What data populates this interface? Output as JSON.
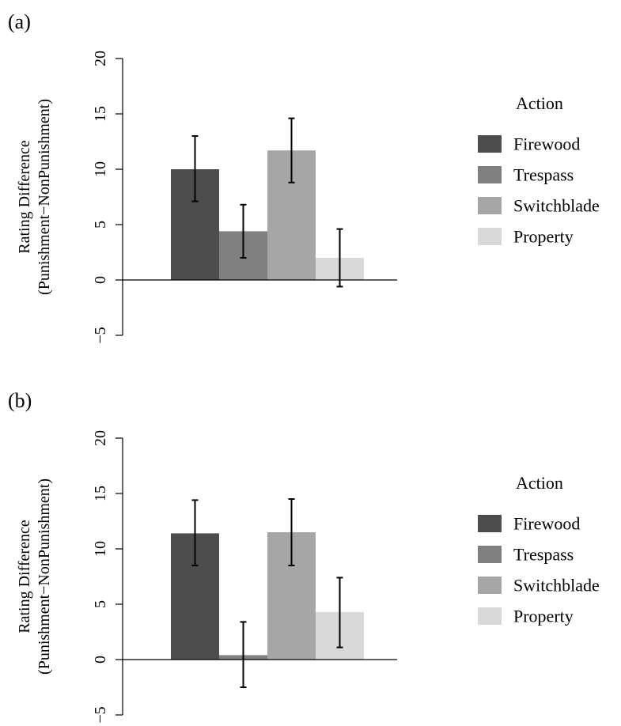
{
  "chart_data": [
    {
      "panel_label": "(a)",
      "type": "bar",
      "categories": [
        "Firewood",
        "Trespass",
        "Switchblade",
        "Property"
      ],
      "values": [
        10.0,
        4.4,
        11.7,
        2.0
      ],
      "error_low": [
        7.1,
        2.0,
        8.8,
        -0.6
      ],
      "error_high": [
        13.0,
        6.8,
        14.6,
        4.6
      ],
      "colors": [
        "#4d4d4d",
        "#7f7f7f",
        "#a6a6a6",
        "#d9d9d9"
      ],
      "ylabel_line1": "Rating Difference",
      "ylabel_line2": "(Punishment−NonPunishment)",
      "ylim": [
        -5,
        20
      ],
      "yticks": [
        -5,
        0,
        5,
        10,
        15,
        20
      ],
      "ytick_labels": [
        "−5",
        "0",
        "5",
        "10",
        "15",
        "20"
      ],
      "legend_title": "Action",
      "legend_items": [
        "Firewood",
        "Trespass",
        "Switchblade",
        "Property"
      ],
      "legend_position": "right",
      "grid": false
    },
    {
      "panel_label": "(b)",
      "type": "bar",
      "categories": [
        "Firewood",
        "Trespass",
        "Switchblade",
        "Property"
      ],
      "values": [
        11.4,
        0.4,
        11.5,
        4.3
      ],
      "error_low": [
        8.5,
        -2.5,
        8.5,
        1.1
      ],
      "error_high": [
        14.4,
        3.4,
        14.5,
        7.4
      ],
      "colors": [
        "#4d4d4d",
        "#7f7f7f",
        "#a6a6a6",
        "#d9d9d9"
      ],
      "ylabel_line1": "Rating Difference",
      "ylabel_line2": "(Punishment−NonPunishment)",
      "ylim": [
        -5,
        20
      ],
      "yticks": [
        -5,
        0,
        5,
        10,
        15,
        20
      ],
      "ytick_labels": [
        "−5",
        "0",
        "5",
        "10",
        "15",
        "20"
      ],
      "legend_title": "Action",
      "legend_items": [
        "Firewood",
        "Trespass",
        "Switchblade",
        "Property"
      ],
      "legend_position": "right",
      "grid": false
    }
  ]
}
